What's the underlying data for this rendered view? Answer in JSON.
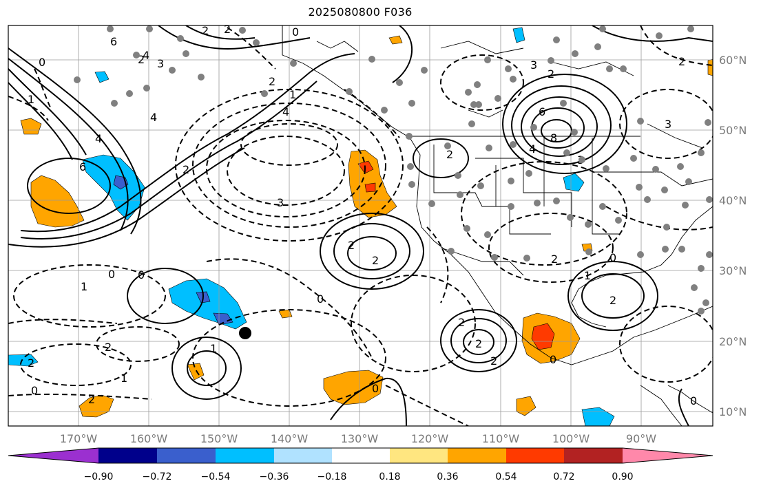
{
  "title": "2025080800 F036",
  "lat_labels": [
    "60°N",
    "50°N",
    "40°N",
    "30°N",
    "20°N",
    "10°N"
  ],
  "lon_labels": [
    "170°W",
    "160°W",
    "150°W",
    "140°W",
    "130°W",
    "120°W",
    "110°W",
    "100°W",
    "90°W"
  ],
  "colorbar": {
    "colors": [
      "#9b30d0",
      "#00008b",
      "#3a5fcd",
      "#00bfff",
      "#b0e2ff",
      "#ffffff",
      "#ffe680",
      "#ffa500",
      "#ff3a00",
      "#b22222",
      "#ff88aa"
    ],
    "tick_labels": [
      "−0.90",
      "−0.72",
      "−0.54",
      "−0.36",
      "−0.18",
      "0.18",
      "0.36",
      "0.54",
      "0.72",
      "0.90"
    ]
  },
  "contour_labels": [
    "0",
    "2",
    "2",
    "3",
    "2",
    "6",
    "4",
    "4",
    "6",
    "2",
    "4",
    "0",
    "1",
    "1",
    "2",
    "4",
    "3",
    "2",
    "6",
    "8",
    "4",
    "3",
    "2",
    "3",
    "2",
    "2",
    "3",
    "2",
    "2",
    "0",
    "1",
    "0",
    "0",
    "1",
    "2",
    "2",
    "0",
    "2",
    "1",
    "1",
    "0",
    "2",
    "2",
    "2",
    "0",
    "0",
    "2",
    "0"
  ],
  "markers": {
    "black_dot": "station-marker",
    "gray_dot": "observation-dot"
  }
}
